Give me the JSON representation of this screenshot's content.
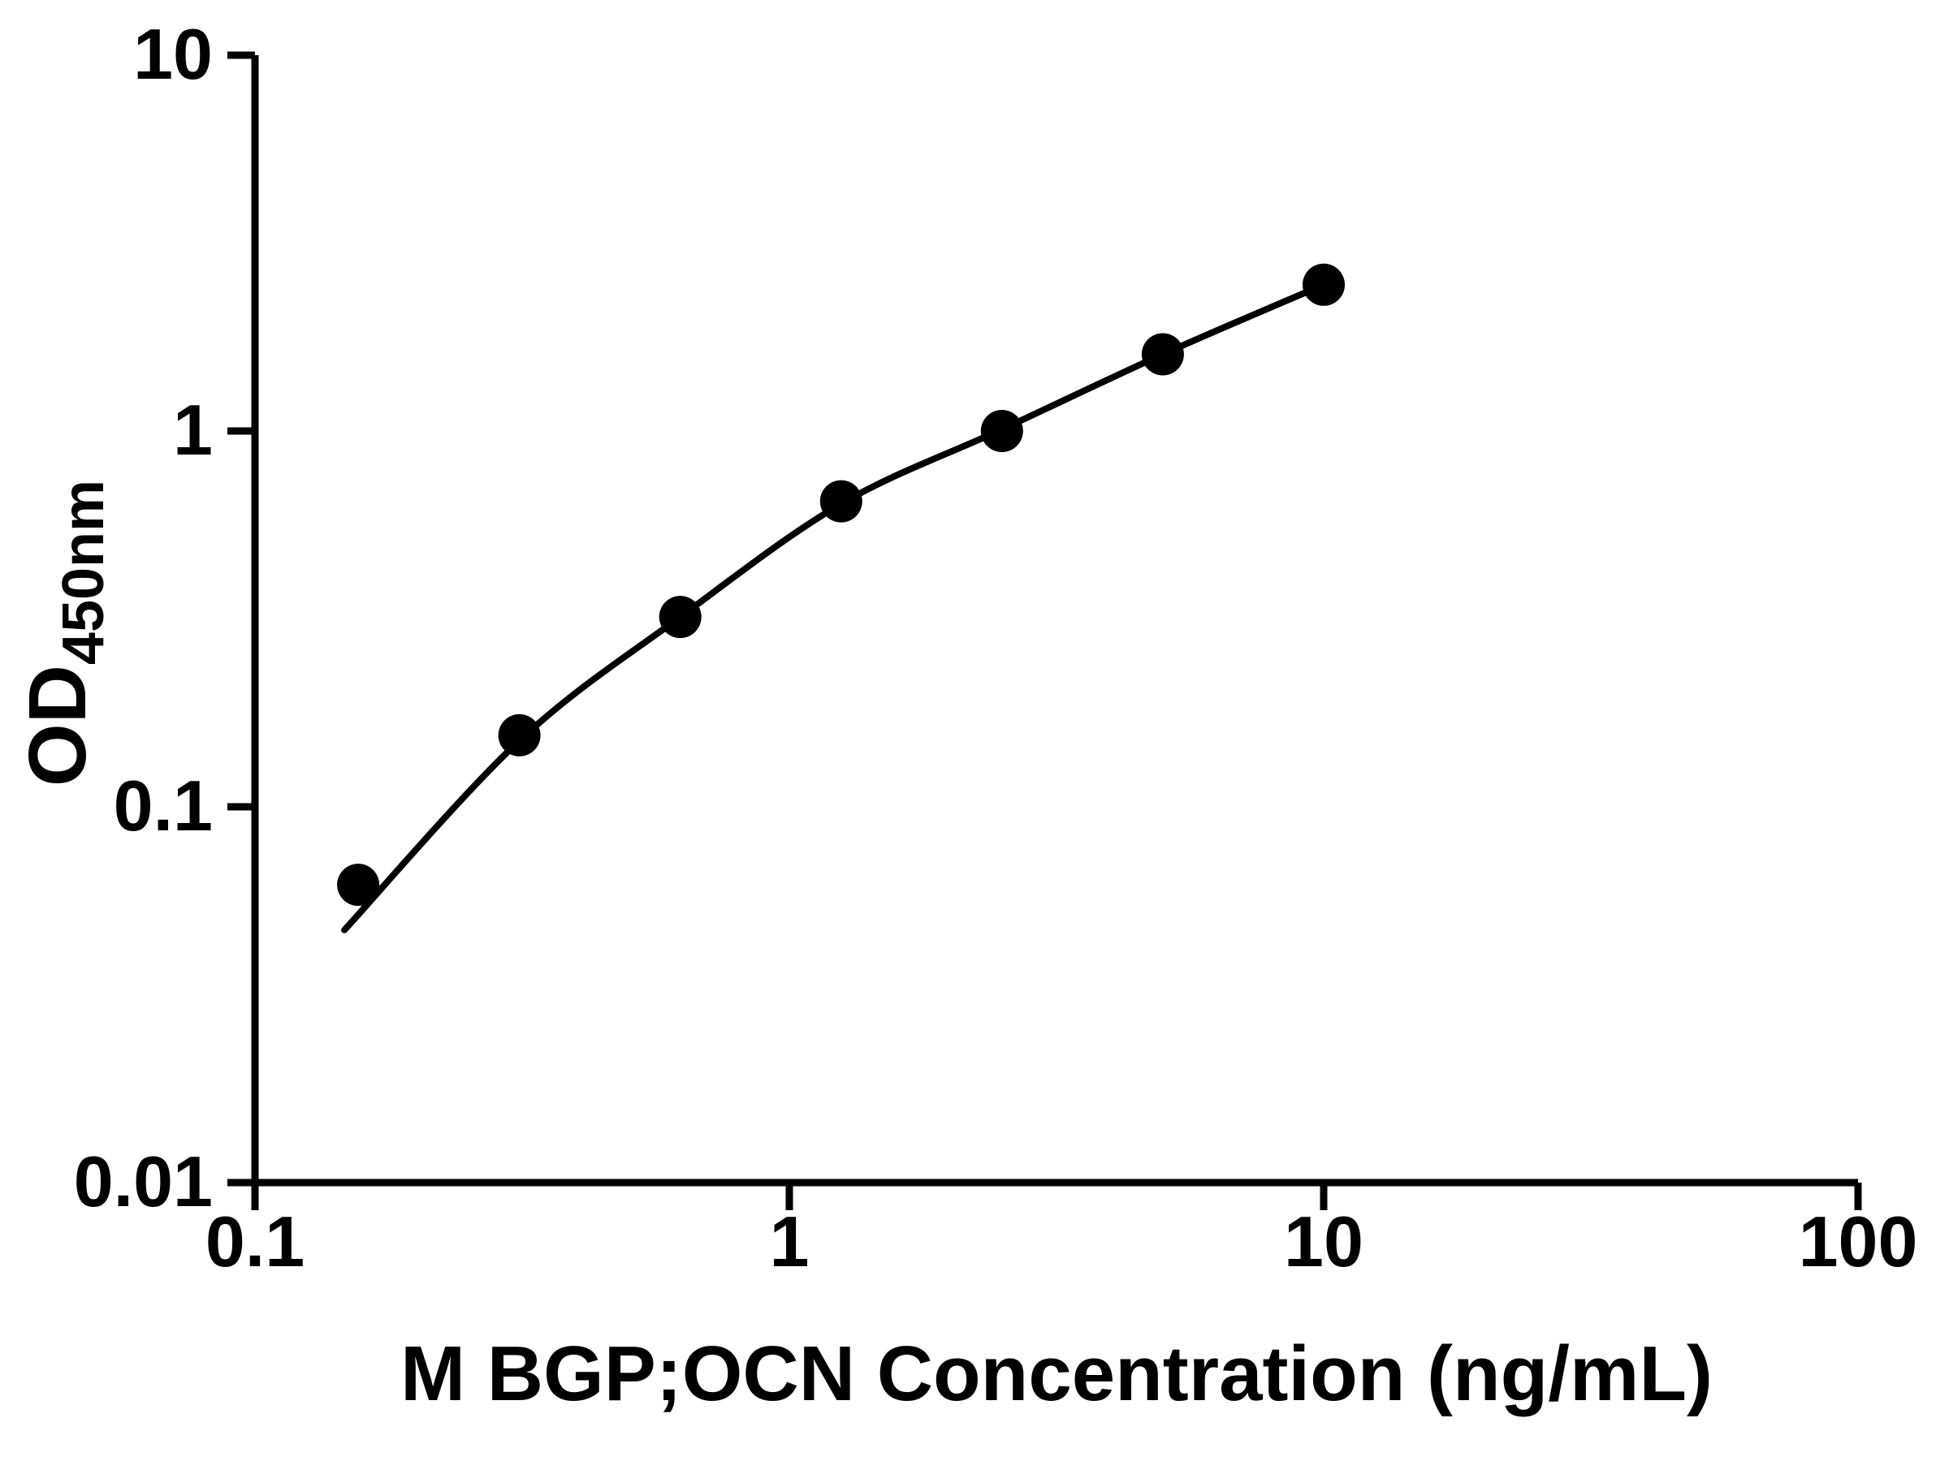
{
  "chart_data": {
    "type": "scatter",
    "title": "",
    "xlabel": "M BGP;OCN Concentration (ng/mL)",
    "ylabel": "OD450nm",
    "ylabel_main": "OD",
    "ylabel_sub": "450nm",
    "x_scale": "log",
    "y_scale": "log",
    "xlim": [
      0.1,
      100
    ],
    "ylim": [
      0.01,
      10
    ],
    "x_ticks": [
      "0.1",
      "1",
      "10",
      "100"
    ],
    "y_ticks": [
      "0.01",
      "0.1",
      "1",
      "10"
    ],
    "grid": false,
    "legend": "none",
    "axis_color": "#000000",
    "marker_color": "#000000",
    "line_color": "#000000",
    "points": [
      {
        "x": 0.156,
        "y": 0.062
      },
      {
        "x": 0.3125,
        "y": 0.155
      },
      {
        "x": 0.625,
        "y": 0.32
      },
      {
        "x": 1.25,
        "y": 0.65
      },
      {
        "x": 2.5,
        "y": 1.0
      },
      {
        "x": 5,
        "y": 1.6
      },
      {
        "x": 10,
        "y": 2.45
      }
    ],
    "fit_curve_points": [
      {
        "x": 0.147,
        "y": 0.047
      },
      {
        "x": 0.3125,
        "y": 0.15
      },
      {
        "x": 0.625,
        "y": 0.32
      },
      {
        "x": 1.25,
        "y": 0.64
      },
      {
        "x": 2.5,
        "y": 1.01
      },
      {
        "x": 5,
        "y": 1.6
      },
      {
        "x": 10,
        "y": 2.45
      }
    ]
  }
}
